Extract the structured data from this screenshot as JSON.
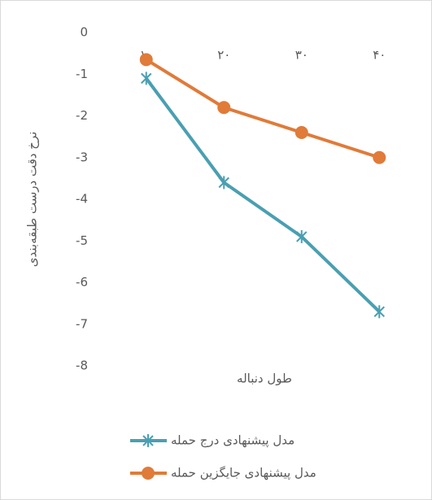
{
  "chart_data": {
    "type": "line",
    "categories": [
      "۱۰",
      "۲۰",
      "۳۰",
      "۴۰"
    ],
    "series": [
      {
        "name": "مدل پیشنهادی درج حمله",
        "color": "#4a9fb2",
        "marker": "star",
        "values": [
          -1.1,
          -3.6,
          -4.9,
          -6.7
        ]
      },
      {
        "name": "مدل پیشنهادی جایگزین حمله",
        "color": "#e07b39",
        "marker": "circle",
        "values": [
          -0.65,
          -1.8,
          -2.4,
          -3.0
        ]
      }
    ],
    "ylim": [
      -8,
      0
    ],
    "yticks": [
      0,
      -1,
      -2,
      -3,
      -4,
      -5,
      -6,
      -7,
      -8
    ],
    "ylabel": "نرخ دقت درست طبقه‌بندی",
    "xlabel": "طول دنباله",
    "grid": false
  }
}
